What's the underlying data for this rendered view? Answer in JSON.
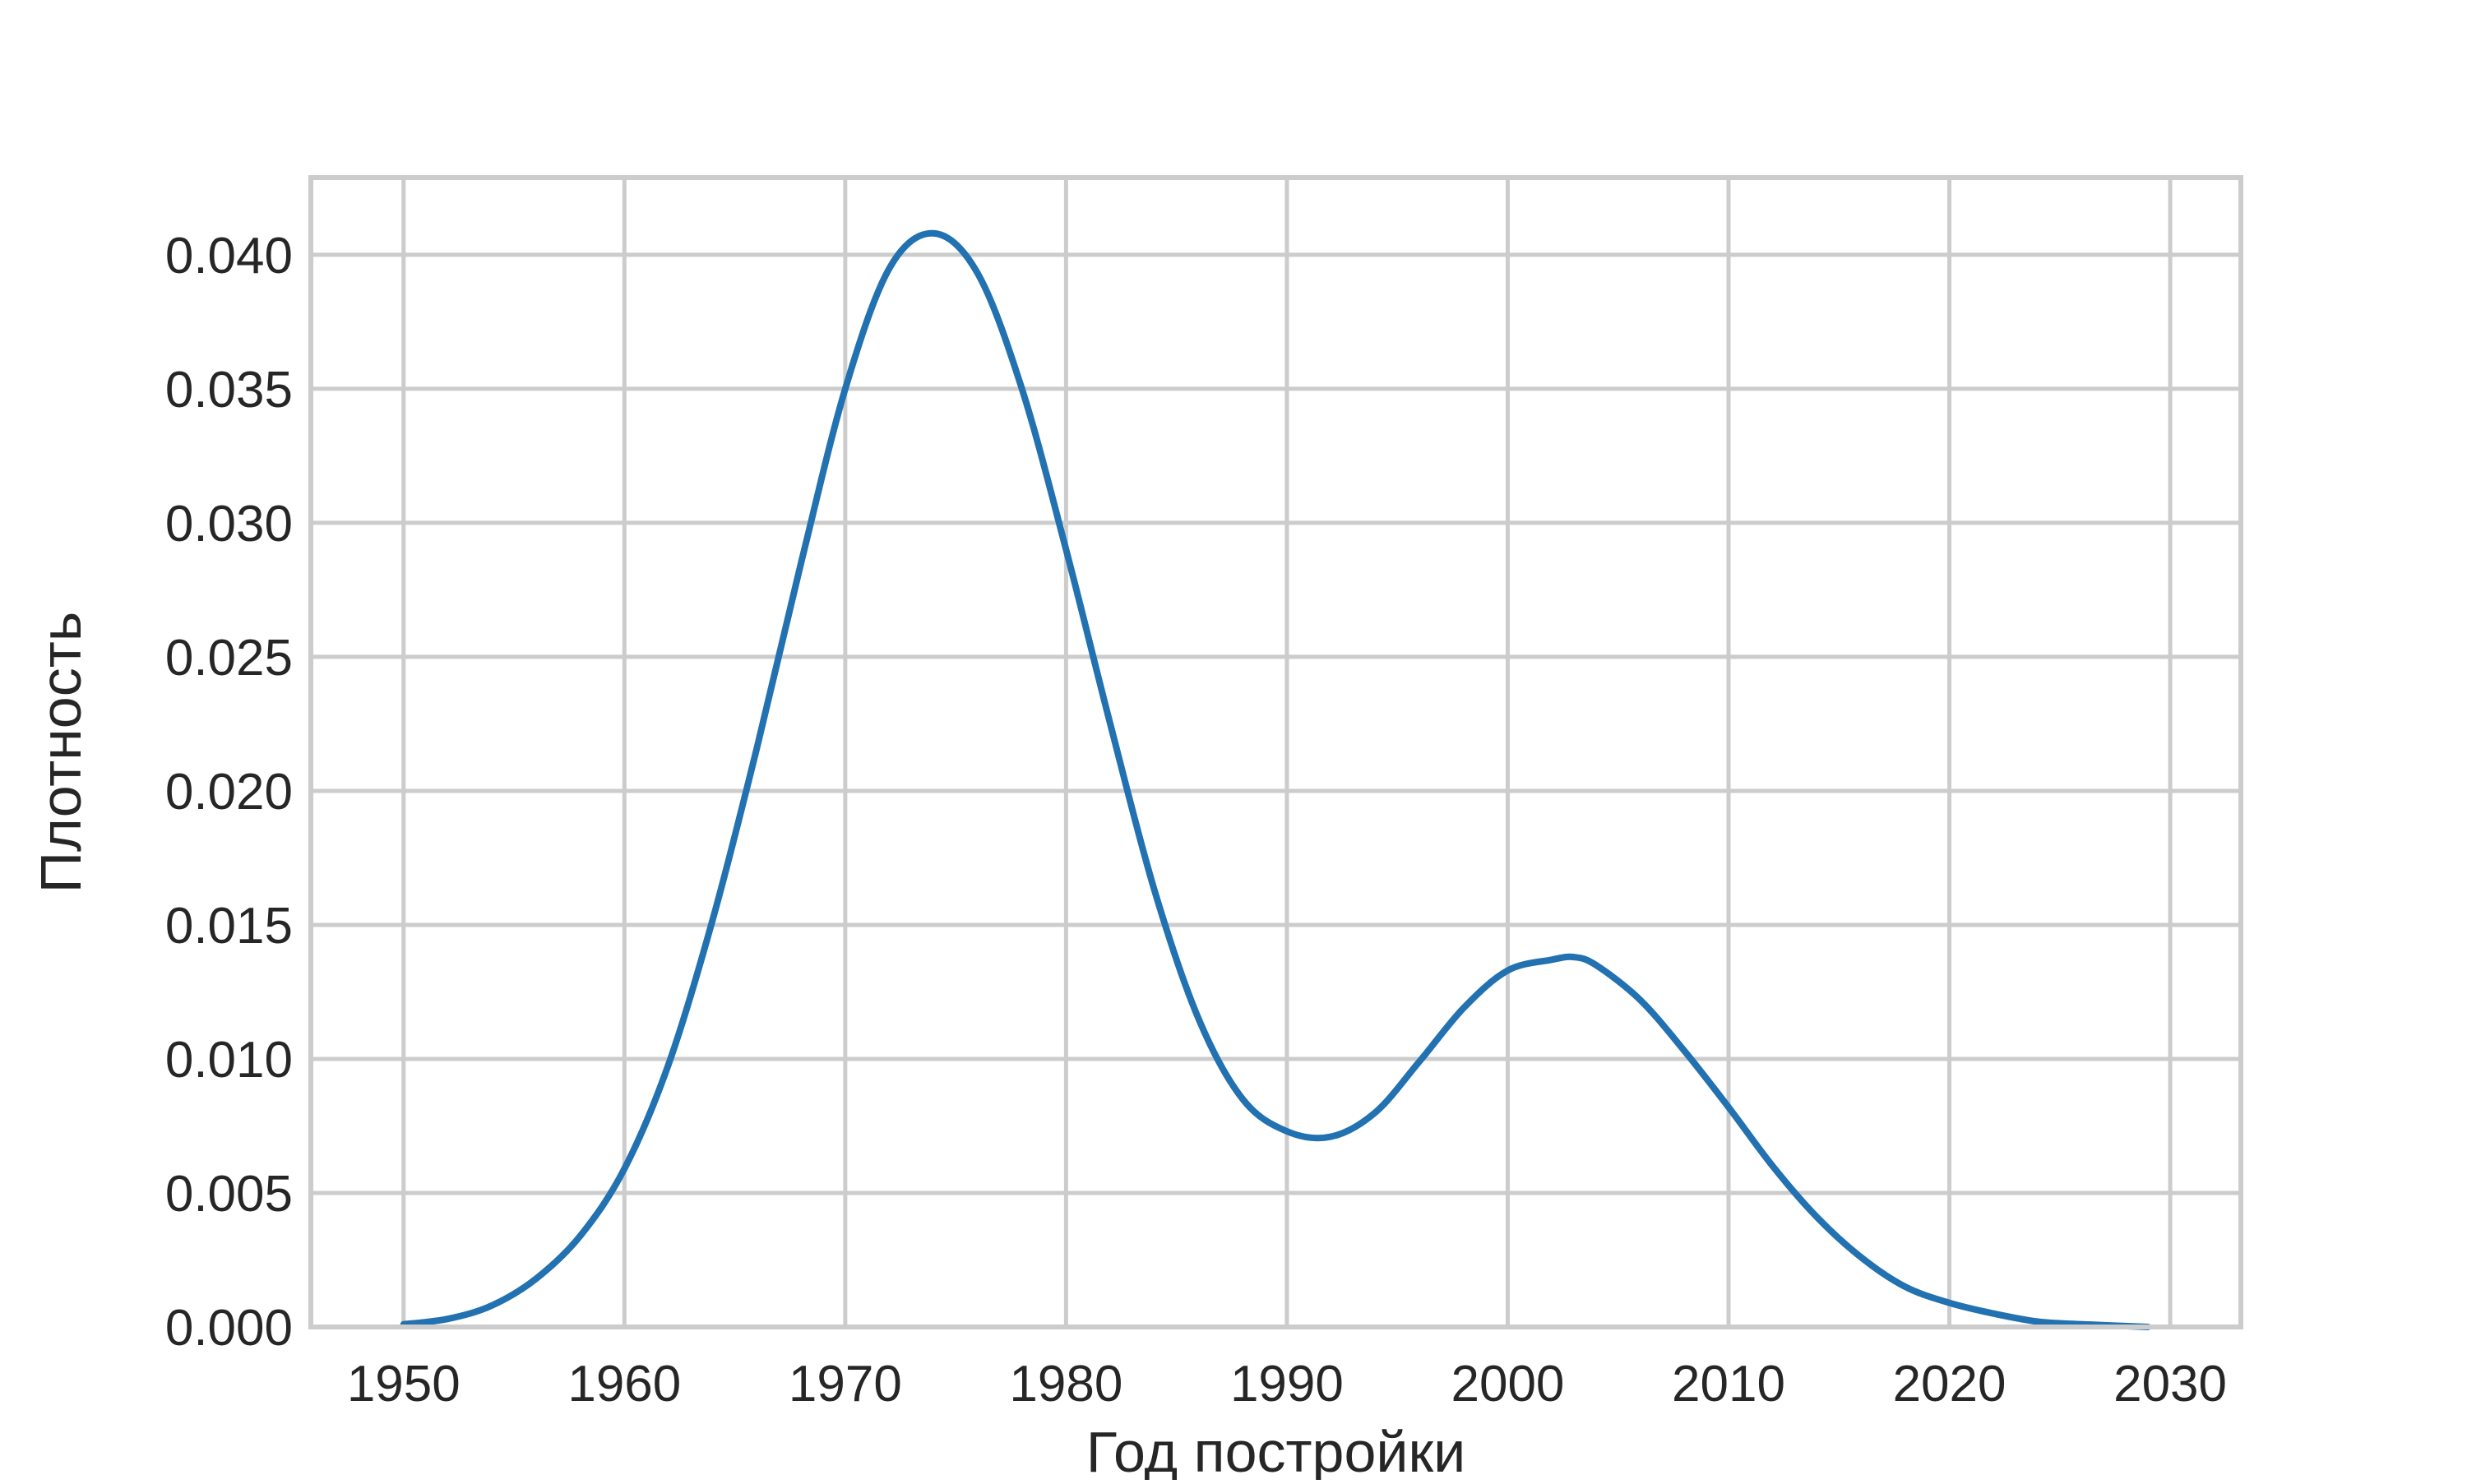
{
  "chart_data": {
    "type": "line",
    "title": "",
    "xlabel": "Год постройки",
    "ylabel": "Плотность",
    "xlim": [
      1945.8,
      2033.2
    ],
    "ylim": [
      0.0,
      0.04288
    ],
    "x_ticks": [
      1950,
      1960,
      1970,
      1980,
      1990,
      2000,
      2010,
      2020,
      2030
    ],
    "y_ticks": [
      0.0,
      0.005,
      0.01,
      0.015,
      0.02,
      0.025,
      0.03,
      0.035,
      0.04
    ],
    "x_tick_labels": [
      "1950",
      "1960",
      "1970",
      "1980",
      "1990",
      "2000",
      "2010",
      "2020",
      "2030"
    ],
    "y_tick_labels": [
      "0.000",
      "0.005",
      "0.010",
      "0.015",
      "0.020",
      "0.025",
      "0.030",
      "0.035",
      "0.040"
    ],
    "grid": true,
    "legend": "none",
    "series": [
      {
        "color": "#2271b1",
        "x": [
          1950,
          1952,
          1954,
          1956,
          1958,
          1960,
          1962,
          1964,
          1966,
          1968,
          1970,
          1972,
          1974,
          1976,
          1978,
          1980,
          1982,
          1984,
          1986,
          1988,
          1990,
          1992,
          1994,
          1996,
          1998,
          2000,
          2002,
          2003,
          2004,
          2006,
          2008,
          2010,
          2012,
          2014,
          2016,
          2018,
          2020,
          2022,
          2024,
          2026,
          2029
        ],
        "y": [
          0.0001,
          0.0003,
          0.0008,
          0.0018,
          0.0034,
          0.0059,
          0.0098,
          0.0152,
          0.0216,
          0.0285,
          0.035,
          0.0395,
          0.0408,
          0.0393,
          0.035,
          0.029,
          0.0225,
          0.0163,
          0.0115,
          0.0085,
          0.0073,
          0.0071,
          0.008,
          0.0099,
          0.0119,
          0.0133,
          0.0137,
          0.0138,
          0.0135,
          0.0122,
          0.0103,
          0.0082,
          0.006,
          0.0041,
          0.0026,
          0.0015,
          0.0009,
          0.0005,
          0.0002,
          0.0001,
          0.0
        ]
      }
    ]
  }
}
